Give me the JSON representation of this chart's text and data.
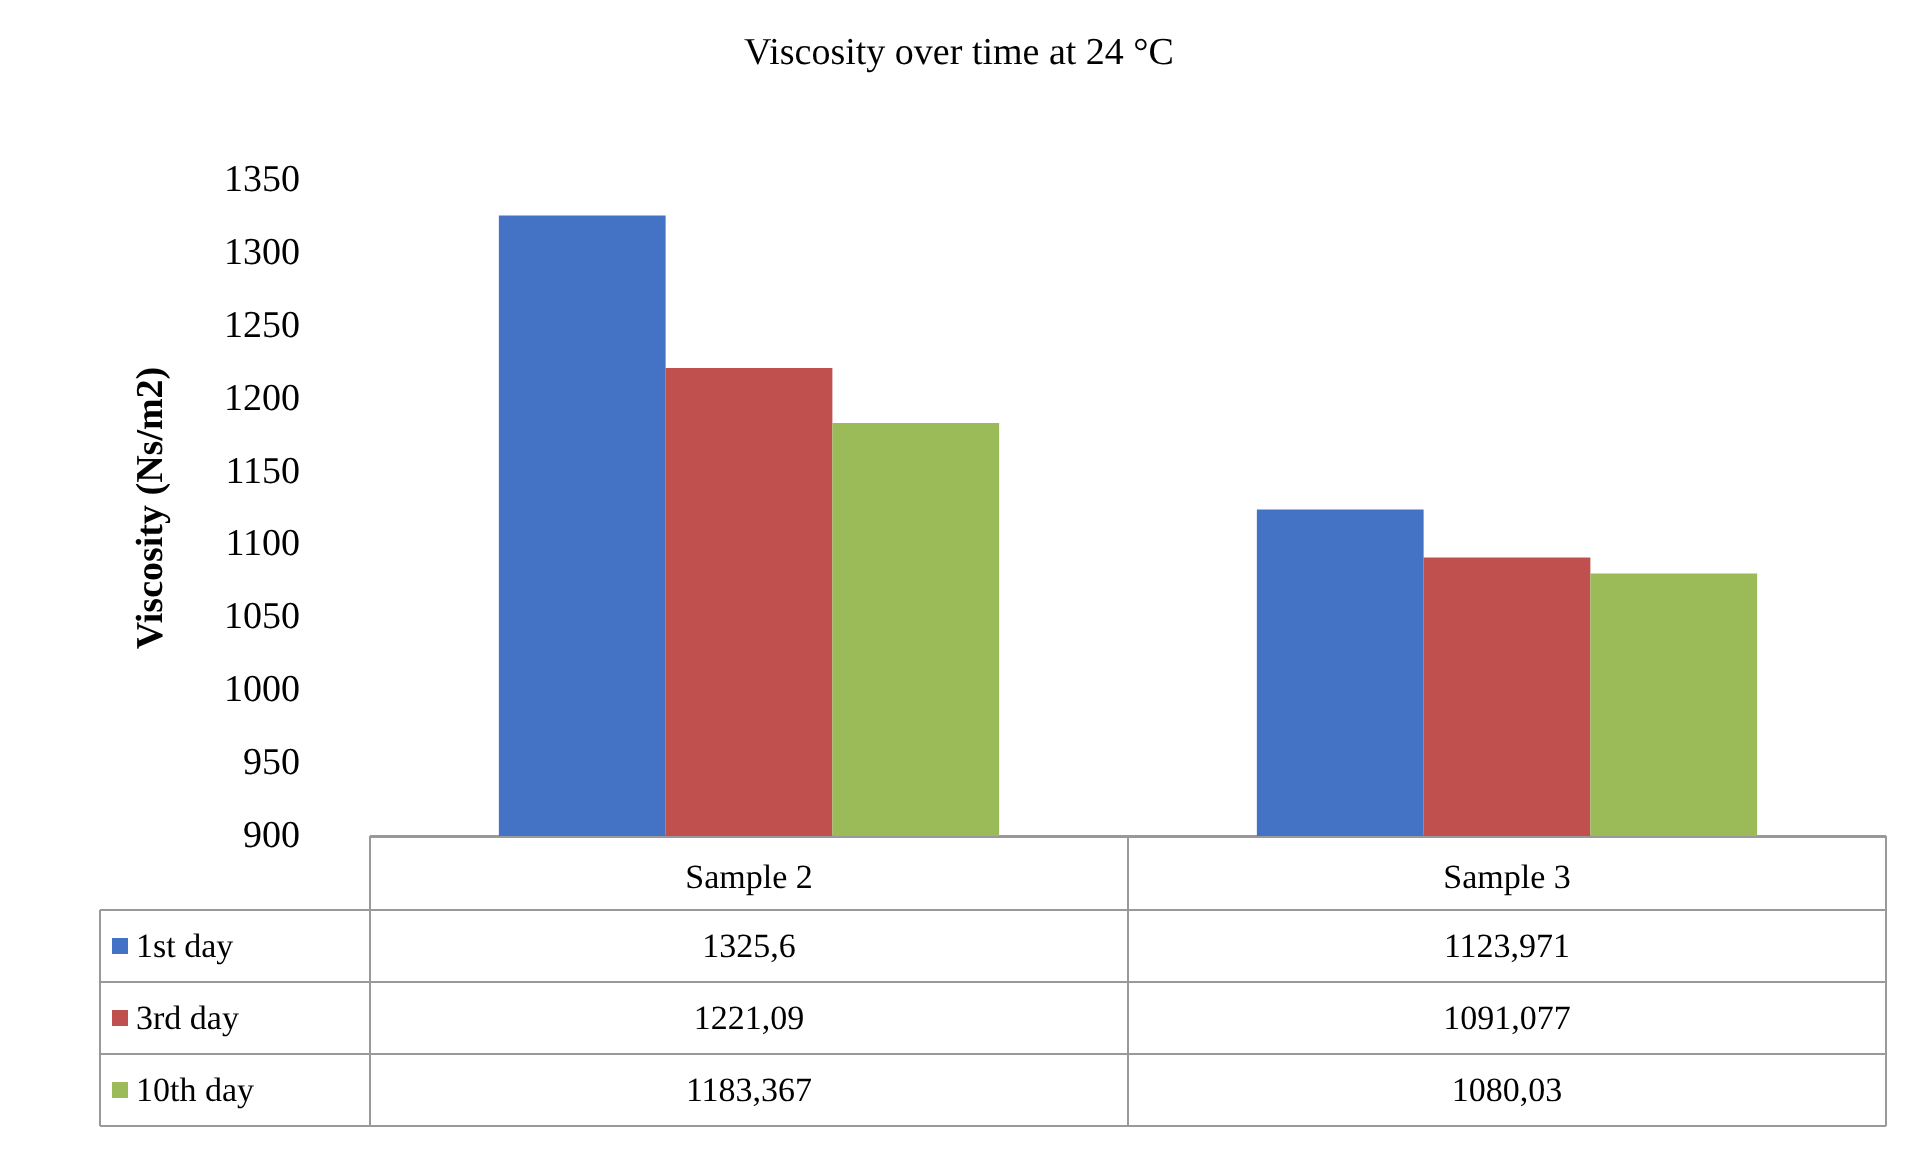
{
  "chart_data": {
    "type": "bar",
    "title": "Viscosity over time at 24 °C",
    "ylabel": "Viscosity (Ns/m2)",
    "categories": [
      "Sample 2",
      "Sample 3"
    ],
    "series": [
      {
        "name": "1st day",
        "color": "#4472c4",
        "values": [
          1325.6,
          1123.971
        ],
        "value_labels": [
          "1325,6",
          "1123,971"
        ]
      },
      {
        "name": "3rd day",
        "color": "#c0504d",
        "values": [
          1221.09,
          1091.077
        ],
        "value_labels": [
          "1221,09",
          "1091,077"
        ]
      },
      {
        "name": "10th day",
        "color": "#9bbb59",
        "values": [
          1183.367,
          1080.03
        ],
        "value_labels": [
          "1183,367",
          "1080,03"
        ]
      }
    ],
    "ylim": [
      900,
      1350
    ],
    "yticks": [
      900,
      950,
      1000,
      1050,
      1100,
      1150,
      1200,
      1250,
      1300,
      1350
    ],
    "grid": false,
    "legend": "bottom left"
  }
}
